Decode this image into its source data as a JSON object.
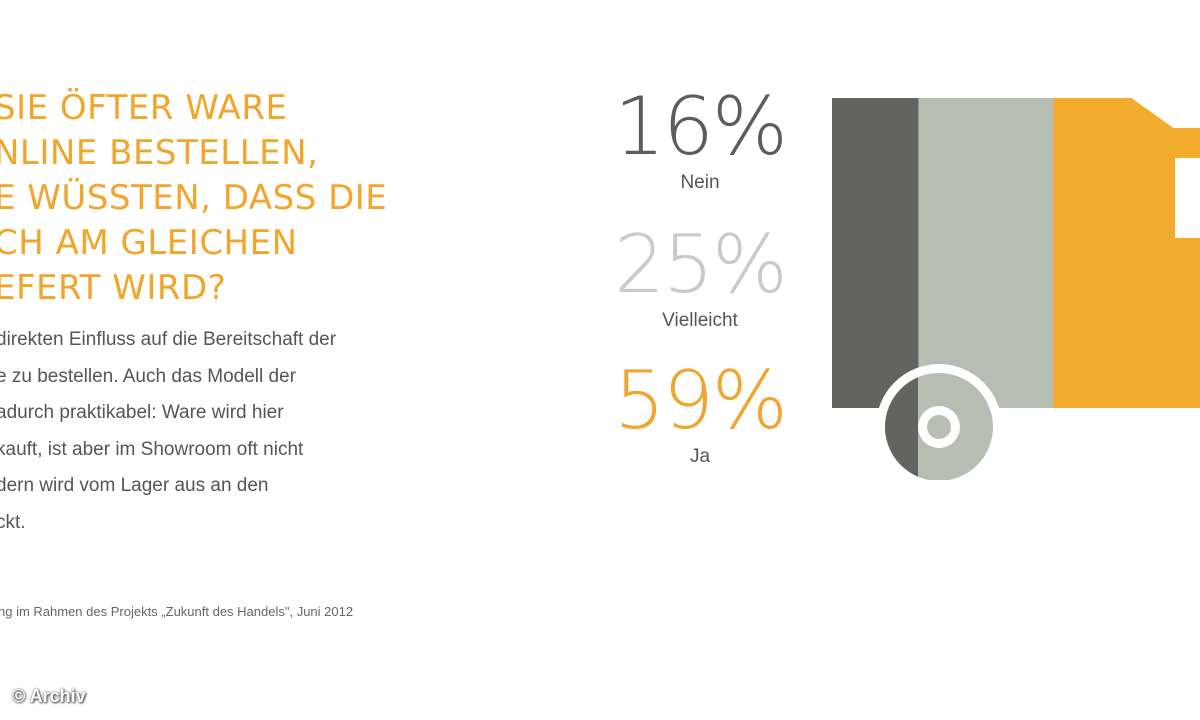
{
  "headline": [
    "SIE ÖFTER WARE",
    "NLINE BESTELLEN,",
    "E WÜSSTEN, DASS DIE",
    "CH AM GLEICHEN",
    "EFERT WIRD?"
  ],
  "body_lines": [
    "direkten Einfluss auf die Bereitschaft der",
    "e zu bestellen. Auch das Modell der",
    "adurch praktikabel: Ware wird hier",
    "kauft, ist aber im Showroom oft nicht",
    "dern wird vom Lager aus an den",
    "ckt."
  ],
  "source": "ng im Rahmen des Projekts „Zukunft des Handels\", Juni 2012",
  "credit": "© Archiv",
  "chart_data": {
    "type": "bar",
    "categories": [
      "Nein",
      "Vielleicht",
      "Ja"
    ],
    "values": [
      16,
      25,
      59
    ],
    "value_labels": [
      "16%",
      "25%",
      "59%"
    ],
    "unit": "%",
    "colors": [
      "#636360",
      "#b8bdb2",
      "#f2ab2c"
    ],
    "style": "stacked proportions rendered as a delivery truck"
  }
}
